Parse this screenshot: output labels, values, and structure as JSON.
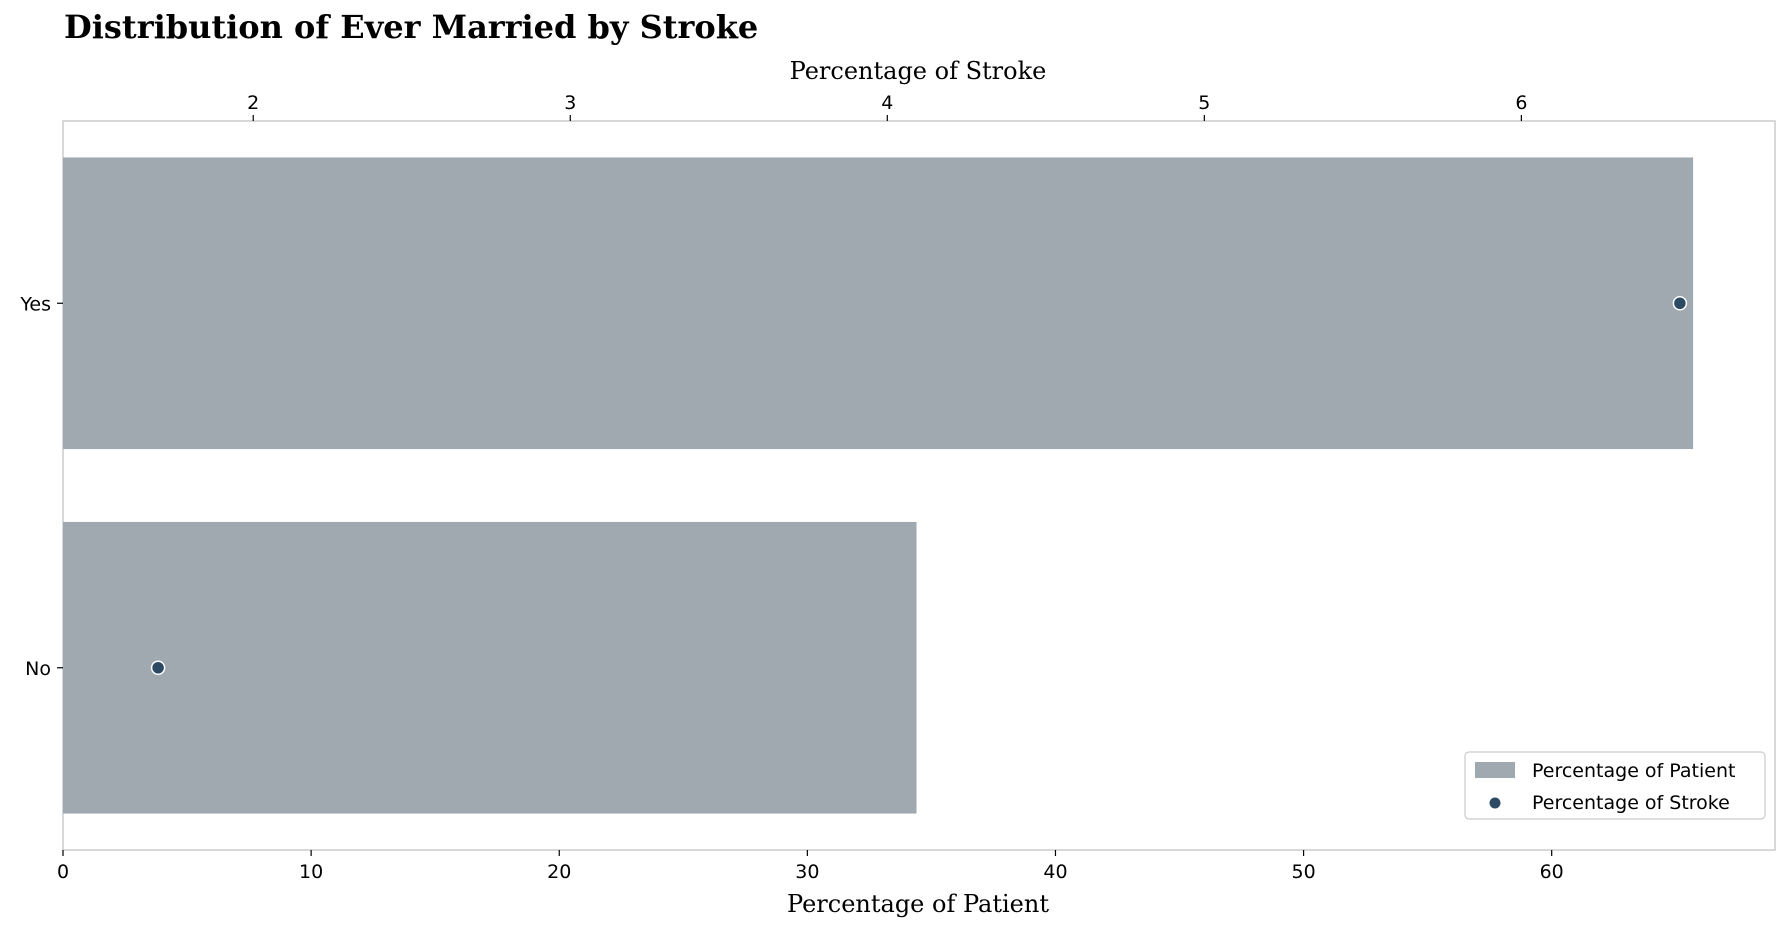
{
  "chart_data": {
    "type": "bar",
    "orientation": "horizontal",
    "title": "Distribution of Ever Married by Stroke",
    "categories": [
      "Yes",
      "No"
    ],
    "series": [
      {
        "name": "Percentage of Patient",
        "type": "bar",
        "axis": "bottom",
        "values": [
          65.7,
          34.4
        ],
        "color": "#a0a8b0"
      },
      {
        "name": "Percentage of Stroke",
        "type": "scatter",
        "axis": "top",
        "values": [
          6.5,
          1.7
        ],
        "color": "#2c4a63"
      }
    ],
    "xlabel_bottom": "Percentage of Patient",
    "xlabel_top": "Percentage of Stroke",
    "xlim_bottom": [
      0,
      69
    ],
    "xlim_top": [
      1.4,
      6.8
    ],
    "xticks_bottom": [
      0,
      10,
      20,
      30,
      40,
      50,
      60
    ],
    "xticks_top": [
      2,
      3,
      4,
      5,
      6
    ],
    "grid": false,
    "legend_position": "lower-right"
  }
}
